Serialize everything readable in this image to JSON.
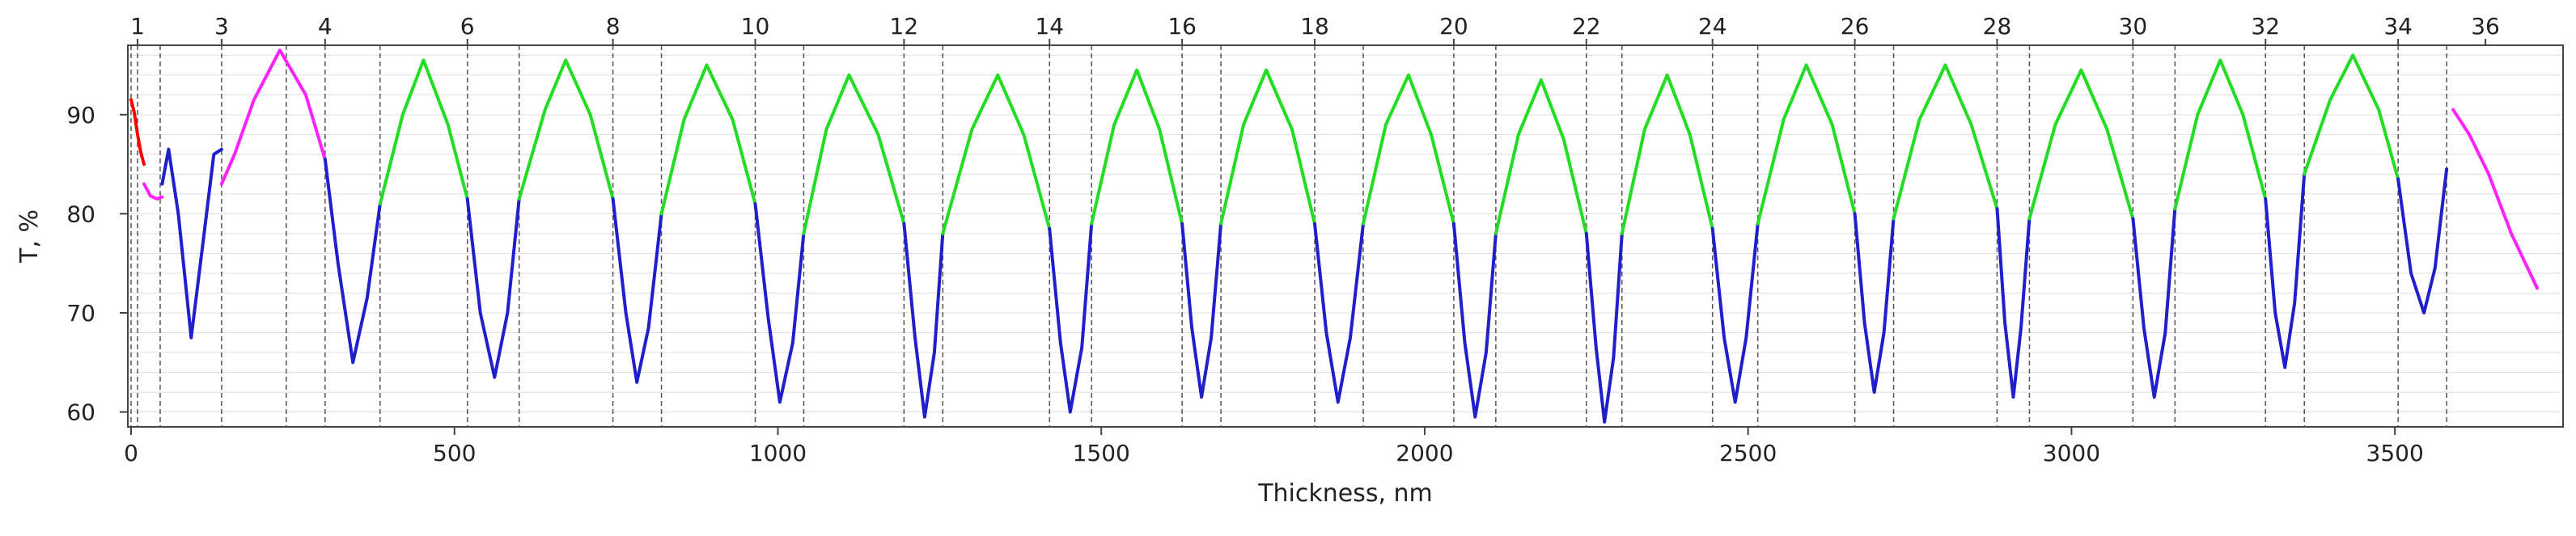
{
  "chart_data": {
    "type": "line",
    "xlabel": "Thickness, nm",
    "ylabel": "T, %",
    "xlim": [
      -5,
      3760
    ],
    "ylim": [
      58.5,
      97
    ],
    "x_ticks": [
      0,
      500,
      1000,
      1500,
      2000,
      2500,
      3000,
      3500
    ],
    "y_ticks": [
      60,
      70,
      80,
      90
    ],
    "y_tick_labels": [
      "60",
      "70",
      "80",
      "90"
    ],
    "grid": true,
    "layer_boundaries_nm": [
      0,
      10,
      45,
      140,
      240,
      300,
      385,
      520,
      600,
      745,
      820,
      965,
      1040,
      1195,
      1255,
      1420,
      1485,
      1625,
      1685,
      1830,
      1905,
      2045,
      2110,
      2250,
      2305,
      2445,
      2515,
      2665,
      2725,
      2885,
      2935,
      3095,
      3160,
      3300,
      3360,
      3505,
      3580
    ],
    "layer_labels": [
      "1",
      "3",
      "4",
      "6",
      "8",
      "10",
      "12",
      "14",
      "16",
      "18",
      "20",
      "22",
      "24",
      "26",
      "28",
      "30",
      "32",
      "34",
      "36"
    ],
    "layer_label_positions_nm": [
      10,
      140,
      300,
      520,
      745,
      965,
      1195,
      1420,
      1625,
      1830,
      2045,
      2250,
      2445,
      2665,
      2885,
      3095,
      3300,
      3505,
      3640
    ],
    "colors": {
      "red": "#ff0000",
      "magenta": "#ff22ff",
      "blue": "#1f1fcc",
      "green": "#22dd22",
      "boundary": "#555555",
      "grid": "#dddddd"
    },
    "series": [
      {
        "color": "red",
        "x": [
          0,
          5,
          10,
          15,
          20
        ],
        "y": [
          91.5,
          90.2,
          88.0,
          86.2,
          85.0
        ]
      },
      {
        "color": "magenta",
        "x": [
          20,
          30,
          40,
          48
        ],
        "y": [
          83.0,
          81.8,
          81.5,
          81.7
        ]
      },
      {
        "color": "blue",
        "x": [
          48,
          58,
          73,
          93,
          113,
          128,
          140
        ],
        "y": [
          83.0,
          86.5,
          80.0,
          67.5,
          78.0,
          86.0,
          86.5
        ]
      },
      {
        "color": "magenta",
        "x": [
          140,
          160,
          190,
          230,
          270,
          300
        ],
        "y": [
          83.0,
          86.0,
          91.5,
          96.5,
          92.0,
          85.5
        ]
      },
      {
        "color": "blue",
        "x": [
          300,
          320,
          343,
          365,
          385
        ],
        "y": [
          85.5,
          75.0,
          65.0,
          71.5,
          81.0
        ]
      },
      {
        "color": "green",
        "x": [
          385,
          420,
          452,
          490,
          520
        ],
        "y": [
          81.0,
          90.0,
          95.5,
          89.0,
          81.5
        ]
      },
      {
        "color": "blue",
        "x": [
          520,
          540,
          562,
          582,
          600
        ],
        "y": [
          81.5,
          70.0,
          63.5,
          70.0,
          81.5
        ]
      },
      {
        "color": "green",
        "x": [
          600,
          640,
          672,
          710,
          745
        ],
        "y": [
          81.5,
          90.5,
          95.5,
          90.0,
          81.5
        ]
      },
      {
        "color": "blue",
        "x": [
          745,
          765,
          782,
          800,
          820
        ],
        "y": [
          81.5,
          70.0,
          63.0,
          68.5,
          80.0
        ]
      },
      {
        "color": "green",
        "x": [
          820,
          855,
          890,
          930,
          965
        ],
        "y": [
          80.0,
          89.5,
          95.0,
          89.5,
          81.0
        ]
      },
      {
        "color": "blue",
        "x": [
          965,
          985,
          1003,
          1023,
          1040
        ],
        "y": [
          81.0,
          69.5,
          61.0,
          67.0,
          78.0
        ]
      },
      {
        "color": "green",
        "x": [
          1040,
          1075,
          1110,
          1155,
          1195
        ],
        "y": [
          78.0,
          88.5,
          94.0,
          88.0,
          79.0
        ]
      },
      {
        "color": "blue",
        "x": [
          1195,
          1212,
          1227,
          1242,
          1255
        ],
        "y": [
          79.0,
          67.5,
          59.5,
          66.0,
          78.0
        ]
      },
      {
        "color": "green",
        "x": [
          1255,
          1300,
          1340,
          1380,
          1420
        ],
        "y": [
          78.0,
          88.5,
          94.0,
          88.0,
          78.5
        ]
      },
      {
        "color": "blue",
        "x": [
          1420,
          1437,
          1452,
          1470,
          1485
        ],
        "y": [
          78.5,
          67.0,
          60.0,
          66.5,
          79.0
        ]
      },
      {
        "color": "green",
        "x": [
          1485,
          1520,
          1555,
          1590,
          1625
        ],
        "y": [
          79.0,
          89.0,
          94.5,
          88.5,
          79.0
        ]
      },
      {
        "color": "blue",
        "x": [
          1625,
          1640,
          1655,
          1670,
          1685
        ],
        "y": [
          79.0,
          68.5,
          61.5,
          67.5,
          79.0
        ]
      },
      {
        "color": "green",
        "x": [
          1685,
          1720,
          1755,
          1795,
          1830
        ],
        "y": [
          79.0,
          89.0,
          94.5,
          88.5,
          79.0
        ]
      },
      {
        "color": "blue",
        "x": [
          1830,
          1848,
          1866,
          1885,
          1905
        ],
        "y": [
          79.0,
          68.0,
          61.0,
          67.5,
          79.0
        ]
      },
      {
        "color": "green",
        "x": [
          1905,
          1940,
          1975,
          2010,
          2045
        ],
        "y": [
          79.0,
          89.0,
          94.0,
          88.0,
          79.0
        ]
      },
      {
        "color": "blue",
        "x": [
          2045,
          2062,
          2078,
          2095,
          2110
        ],
        "y": [
          79.0,
          67.0,
          59.5,
          66.0,
          78.0
        ]
      },
      {
        "color": "green",
        "x": [
          2110,
          2145,
          2180,
          2215,
          2250
        ],
        "y": [
          78.0,
          88.0,
          93.5,
          87.5,
          78.0
        ]
      },
      {
        "color": "blue",
        "x": [
          2250,
          2265,
          2278,
          2292,
          2305
        ],
        "y": [
          78.0,
          66.5,
          59.0,
          65.5,
          78.0
        ]
      },
      {
        "color": "green",
        "x": [
          2305,
          2340,
          2375,
          2410,
          2445
        ],
        "y": [
          78.0,
          88.5,
          94.0,
          88.0,
          78.5
        ]
      },
      {
        "color": "blue",
        "x": [
          2445,
          2463,
          2480,
          2497,
          2515
        ],
        "y": [
          78.5,
          67.5,
          61.0,
          67.5,
          79.0
        ]
      },
      {
        "color": "green",
        "x": [
          2515,
          2555,
          2590,
          2630,
          2665
        ],
        "y": [
          79.0,
          89.5,
          95.0,
          89.0,
          80.0
        ]
      },
      {
        "color": "blue",
        "x": [
          2665,
          2680,
          2695,
          2710,
          2725
        ],
        "y": [
          80.0,
          69.0,
          62.0,
          68.0,
          79.5
        ]
      },
      {
        "color": "green",
        "x": [
          2725,
          2765,
          2805,
          2845,
          2885
        ],
        "y": [
          79.5,
          89.5,
          95.0,
          89.0,
          80.5
        ]
      },
      {
        "color": "blue",
        "x": [
          2885,
          2897,
          2910,
          2922,
          2935
        ],
        "y": [
          80.5,
          69.0,
          61.5,
          68.5,
          79.5
        ]
      },
      {
        "color": "green",
        "x": [
          2935,
          2975,
          3015,
          3055,
          3095
        ],
        "y": [
          79.5,
          89.0,
          94.5,
          88.5,
          79.5
        ]
      },
      {
        "color": "blue",
        "x": [
          3095,
          3112,
          3128,
          3145,
          3160
        ],
        "y": [
          79.5,
          68.5,
          61.5,
          68.0,
          80.5
        ]
      },
      {
        "color": "green",
        "x": [
          3160,
          3195,
          3230,
          3265,
          3300
        ],
        "y": [
          80.5,
          90.0,
          95.5,
          90.0,
          81.5
        ]
      },
      {
        "color": "blue",
        "x": [
          3300,
          3315,
          3330,
          3345,
          3360
        ],
        "y": [
          81.5,
          70.0,
          64.5,
          71.0,
          84.0
        ]
      },
      {
        "color": "green",
        "x": [
          3360,
          3400,
          3435,
          3475,
          3505
        ],
        "y": [
          84.0,
          91.5,
          96.0,
          90.5,
          83.5
        ]
      },
      {
        "color": "blue",
        "x": [
          3505,
          3525,
          3545,
          3562,
          3580
        ],
        "y": [
          83.5,
          74.0,
          70.0,
          74.5,
          84.5
        ]
      },
      {
        "color": "magenta",
        "x": [
          3590,
          3615,
          3645,
          3680,
          3720
        ],
        "y": [
          90.5,
          88.0,
          84.0,
          78.0,
          72.5
        ]
      }
    ]
  }
}
